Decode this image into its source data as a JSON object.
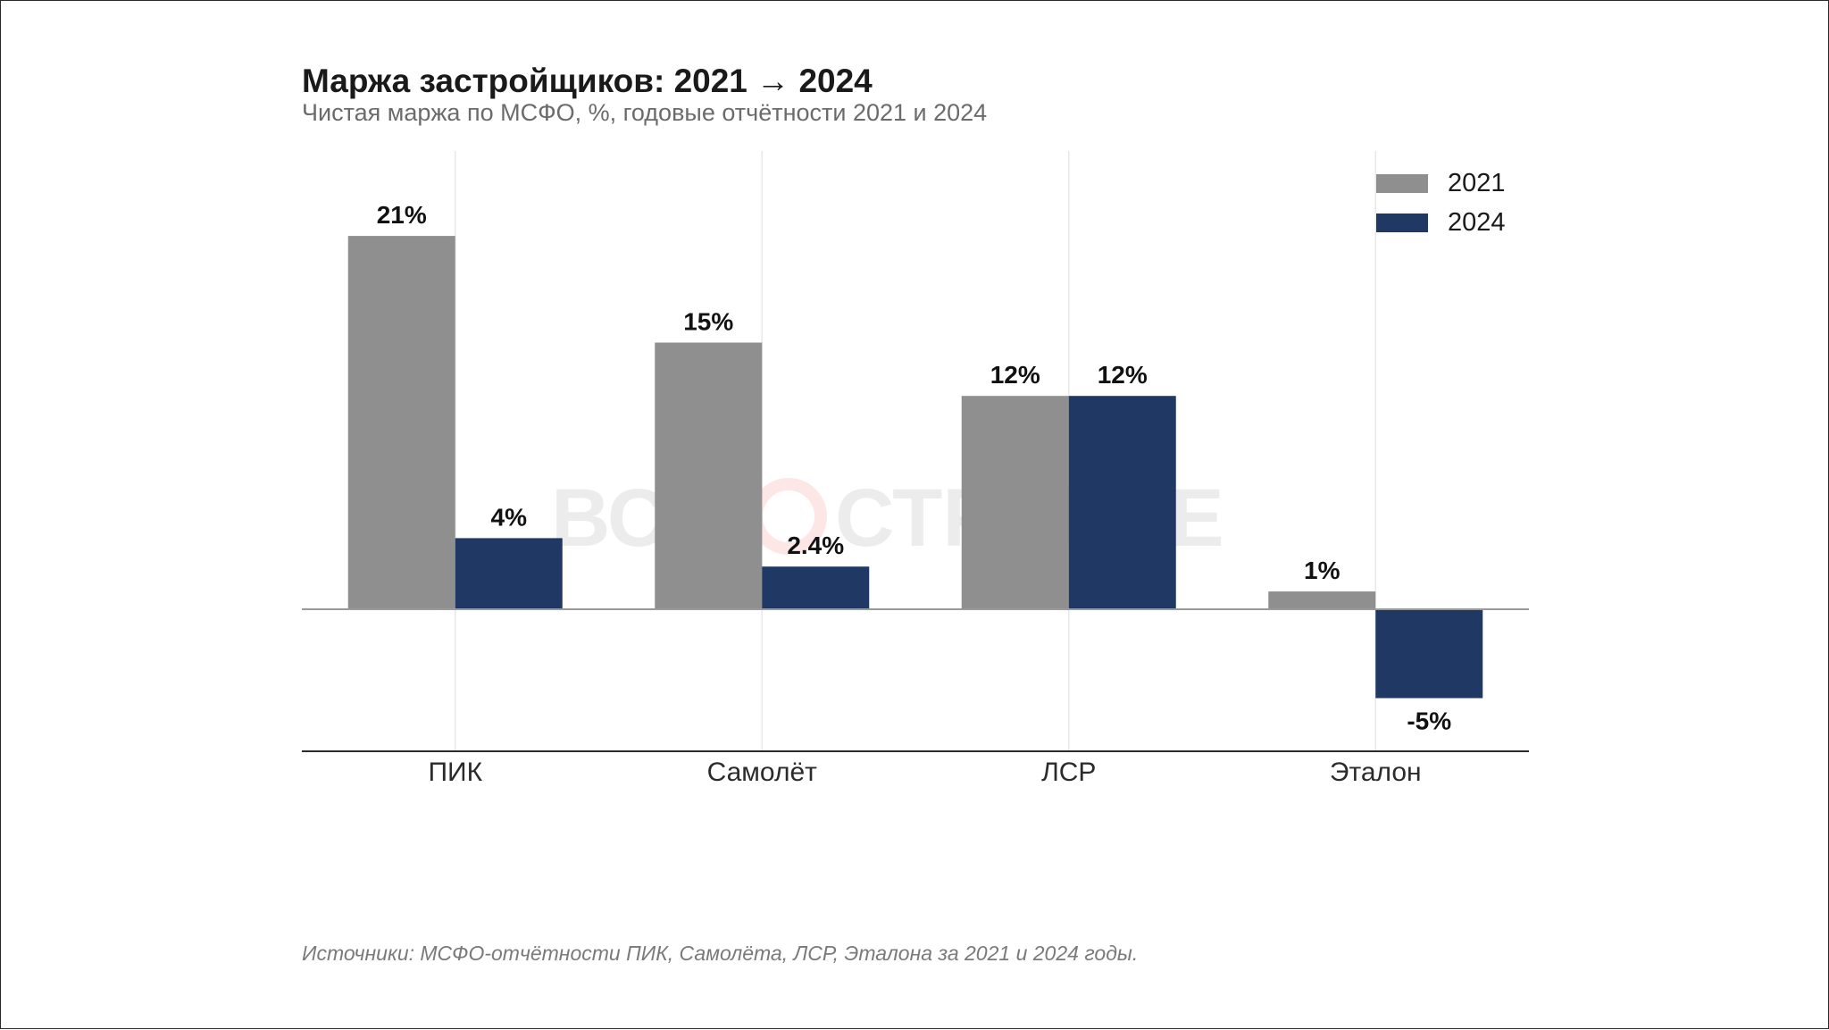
{
  "title": "Маржа застройщиков: 2021 → 2024",
  "subtitle": "Чистая маржа по МСФО, %, годовые отчётности 2021 и 2024",
  "source": "Источники: МСФО-отчётности ПИК, Самолёта, ЛСР, Эталона за 2021 и 2024 годы.",
  "watermark": {
    "left": "ВСЕ",
    "right": "СТРОЙКЕ",
    "accent_color": "#e53935"
  },
  "chart_data": {
    "type": "bar",
    "categories": [
      "ПИК",
      "Самолёт",
      "ЛСР",
      "Эталон"
    ],
    "series": [
      {
        "name": "2021",
        "values": [
          21,
          15,
          12,
          1
        ],
        "labels": [
          "21%",
          "15%",
          "12%",
          "1%"
        ],
        "color": "#8f8f8f"
      },
      {
        "name": "2024",
        "values": [
          4,
          2.4,
          12,
          -5
        ],
        "labels": [
          "4%",
          "2.4%",
          "12%",
          "-5%"
        ],
        "color": "#1f3864"
      }
    ],
    "ylim": [
      -8,
      26
    ],
    "grid": "vertical",
    "legend_position": "top-right"
  }
}
